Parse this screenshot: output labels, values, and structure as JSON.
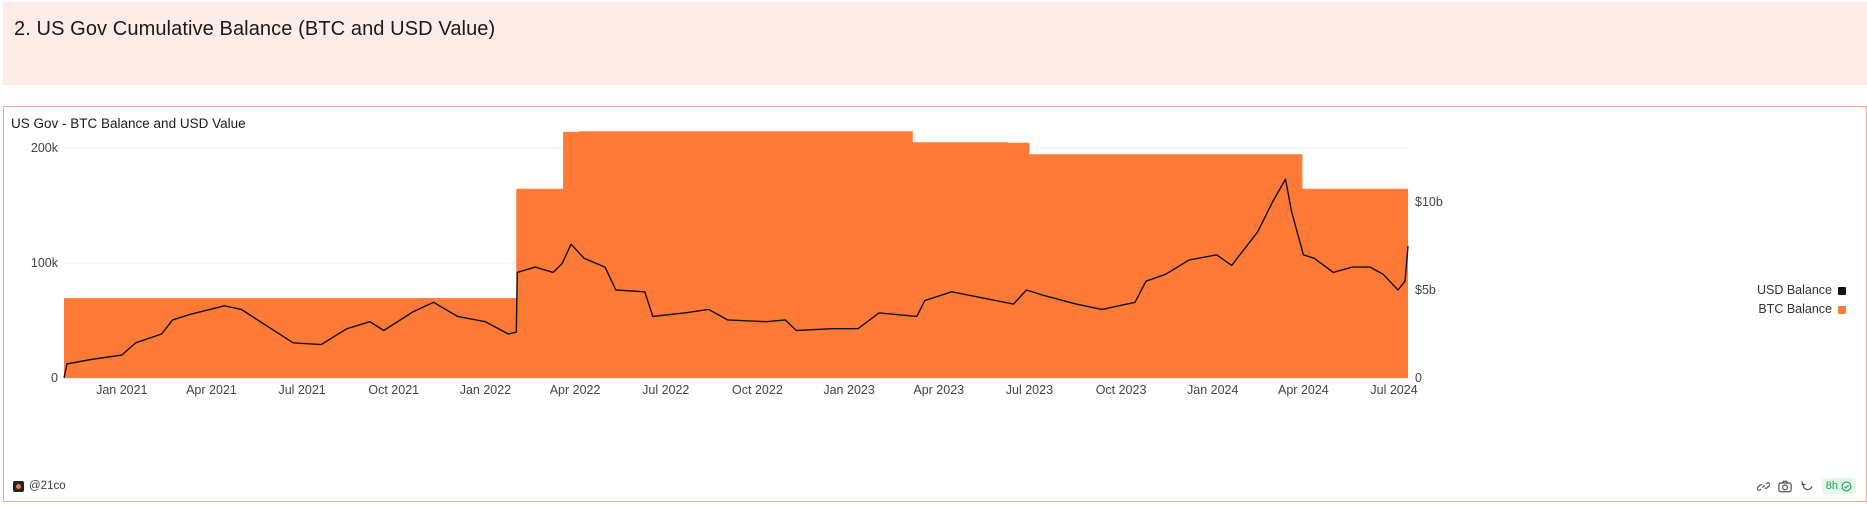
{
  "header": {
    "title": "2. US Gov Cumulative Balance (BTC and USD Value)"
  },
  "panel": {
    "title": "US Gov - BTC Balance and USD Value"
  },
  "legend": [
    {
      "label": "USD Balance",
      "color": "#111111",
      "icon": "square-swatch"
    },
    {
      "label": "BTC Balance",
      "color": "#fe7a36",
      "icon": "square-swatch"
    }
  ],
  "footer": {
    "handle": "@21co",
    "age": "8h",
    "icons": [
      "chain-link-icon",
      "camera-icon",
      "refresh-icon",
      "check-circle-icon"
    ]
  },
  "chart_data": {
    "type": "area",
    "combo": "area (BTC, left axis) + line (USD, right axis)",
    "x_ticks": [
      "Jan 2021",
      "Apr 2021",
      "Jul 2021",
      "Oct 2021",
      "Jan 2022",
      "Apr 2022",
      "Jul 2022",
      "Oct 2022",
      "Jan 2023",
      "Apr 2023",
      "Jul 2023",
      "Oct 2023",
      "Jan 2024",
      "Apr 2024",
      "Jul 2024"
    ],
    "x_range": [
      "2020-11-04",
      "2024-07-15"
    ],
    "y_left_ticks": [
      "0",
      "100k",
      "200k"
    ],
    "y_left_range": [
      0,
      200000
    ],
    "y_right_ticks": [
      "0",
      "$5b",
      "$10b"
    ],
    "y_right_range": [
      0,
      10000000000
    ],
    "grid": "horizontal",
    "legend_position": "right",
    "series": [
      {
        "name": "BTC Balance",
        "axis": "left",
        "style": "area",
        "color": "#fe7a36",
        "points": [
          [
            "2020-11-04",
            69500
          ],
          [
            "2022-02-01",
            69500
          ],
          [
            "2022-02-01",
            164500
          ],
          [
            "2022-03-20",
            164500
          ],
          [
            "2022-03-20",
            214000
          ],
          [
            "2022-04-05",
            214000
          ],
          [
            "2022-04-05",
            214500
          ],
          [
            "2023-03-06",
            214500
          ],
          [
            "2023-03-06",
            205000
          ],
          [
            "2023-06-10",
            205000
          ],
          [
            "2023-06-10",
            204500
          ],
          [
            "2023-07-01",
            204500
          ],
          [
            "2023-07-01",
            194500
          ],
          [
            "2024-03-31",
            194500
          ],
          [
            "2024-03-31",
            164500
          ],
          [
            "2024-07-15",
            164500
          ]
        ]
      },
      {
        "name": "USD Balance",
        "axis": "right",
        "style": "line",
        "color": "#111111",
        "points": [
          [
            "2020-11-04",
            0
          ],
          [
            "2020-11-07",
            800000000
          ],
          [
            "2020-12-01",
            1050000000
          ],
          [
            "2021-01-01",
            1300000000
          ],
          [
            "2021-01-15",
            2000000000
          ],
          [
            "2021-02-10",
            2500000000
          ],
          [
            "2021-02-21",
            3300000000
          ],
          [
            "2021-03-10",
            3600000000
          ],
          [
            "2021-04-14",
            4100000000
          ],
          [
            "2021-05-01",
            3900000000
          ],
          [
            "2021-05-20",
            3200000000
          ],
          [
            "2021-06-22",
            2000000000
          ],
          [
            "2021-07-20",
            1900000000
          ],
          [
            "2021-08-15",
            2800000000
          ],
          [
            "2021-09-07",
            3200000000
          ],
          [
            "2021-09-21",
            2700000000
          ],
          [
            "2021-10-20",
            3750000000
          ],
          [
            "2021-11-10",
            4300000000
          ],
          [
            "2021-12-04",
            3500000000
          ],
          [
            "2022-01-01",
            3200000000
          ],
          [
            "2022-01-24",
            2500000000
          ],
          [
            "2022-02-01",
            2600000000
          ],
          [
            "2022-02-02",
            6000000000
          ],
          [
            "2022-02-20",
            6300000000
          ],
          [
            "2022-03-10",
            6000000000
          ],
          [
            "2022-03-19",
            6500000000
          ],
          [
            "2022-03-28",
            7600000000
          ],
          [
            "2022-04-10",
            6800000000
          ],
          [
            "2022-05-01",
            6300000000
          ],
          [
            "2022-05-12",
            5000000000
          ],
          [
            "2022-06-10",
            4900000000
          ],
          [
            "2022-06-18",
            3500000000
          ],
          [
            "2022-07-20",
            3700000000
          ],
          [
            "2022-08-13",
            3900000000
          ],
          [
            "2022-09-01",
            3300000000
          ],
          [
            "2022-10-10",
            3200000000
          ],
          [
            "2022-10-29",
            3300000000
          ],
          [
            "2022-11-09",
            2700000000
          ],
          [
            "2022-12-15",
            2800000000
          ],
          [
            "2023-01-10",
            2800000000
          ],
          [
            "2023-01-31",
            3700000000
          ],
          [
            "2023-03-10",
            3500000000
          ],
          [
            "2023-03-18",
            4400000000
          ],
          [
            "2023-04-14",
            4900000000
          ],
          [
            "2023-06-15",
            4200000000
          ],
          [
            "2023-06-28",
            5000000000
          ],
          [
            "2023-07-15",
            4700000000
          ],
          [
            "2023-08-17",
            4200000000
          ],
          [
            "2023-09-12",
            3900000000
          ],
          [
            "2023-10-15",
            4300000000
          ],
          [
            "2023-10-26",
            5500000000
          ],
          [
            "2023-11-15",
            5900000000
          ],
          [
            "2023-12-08",
            6700000000
          ],
          [
            "2024-01-05",
            7000000000
          ],
          [
            "2024-01-20",
            6400000000
          ],
          [
            "2024-02-15",
            8300000000
          ],
          [
            "2024-03-01",
            10000000000
          ],
          [
            "2024-03-14",
            11300000000
          ],
          [
            "2024-03-20",
            9500000000
          ],
          [
            "2024-04-01",
            7000000000
          ],
          [
            "2024-04-12",
            6800000000
          ],
          [
            "2024-05-01",
            6000000000
          ],
          [
            "2024-05-20",
            6300000000
          ],
          [
            "2024-06-07",
            6300000000
          ],
          [
            "2024-06-20",
            5900000000
          ],
          [
            "2024-07-05",
            5000000000
          ],
          [
            "2024-07-12",
            5500000000
          ],
          [
            "2024-07-15",
            7500000000
          ]
        ]
      }
    ]
  }
}
